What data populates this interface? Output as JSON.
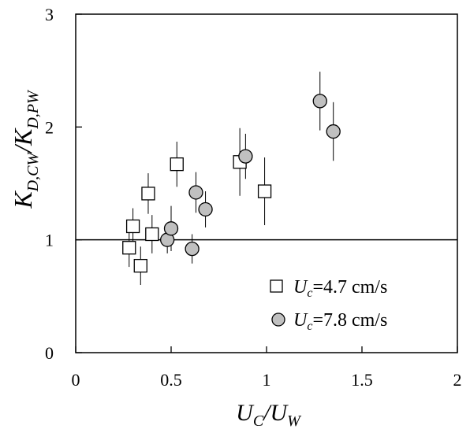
{
  "chart_data": {
    "type": "scatter",
    "xlabel": {
      "main": "U",
      "sub": "C",
      "sep": "/",
      "main2": "U",
      "sub2": "W"
    },
    "ylabel": {
      "main": "K",
      "sub": "D,CW",
      "sep": "/",
      "main2": "K",
      "sub2": "D,PW"
    },
    "xlim": [
      0,
      2
    ],
    "ylim": [
      0,
      3
    ],
    "xticks": [
      "0",
      "0.5",
      "1",
      "1.5",
      "2"
    ],
    "xtick_values": [
      0,
      0.5,
      1,
      1.5,
      2
    ],
    "yticks": [
      "0",
      "1",
      "2",
      "3"
    ],
    "ytick_values": [
      0,
      1,
      2,
      3
    ],
    "reference_line_y": 1,
    "series": [
      {
        "marker": "square",
        "legend": {
          "var": "U",
          "sub": "c",
          "text": "=4.7 cm/s"
        },
        "fill": "#ffffff",
        "points": [
          {
            "x": 0.28,
            "y": 0.93,
            "err": 0.17
          },
          {
            "x": 0.3,
            "y": 1.12,
            "err": 0.16
          },
          {
            "x": 0.34,
            "y": 0.77,
            "err": 0.17
          },
          {
            "x": 0.38,
            "y": 1.41,
            "err": 0.18
          },
          {
            "x": 0.4,
            "y": 1.05,
            "err": 0.17
          },
          {
            "x": 0.53,
            "y": 1.67,
            "err": 0.2
          },
          {
            "x": 0.86,
            "y": 1.69,
            "err": 0.3
          },
          {
            "x": 0.99,
            "y": 1.43,
            "err": 0.3
          }
        ]
      },
      {
        "marker": "circle",
        "legend": {
          "var": "U",
          "sub": "c",
          "text": "=7.8 cm/s"
        },
        "fill": "#c0c0c0",
        "points": [
          {
            "x": 0.48,
            "y": 1.0,
            "err": 0.12
          },
          {
            "x": 0.5,
            "y": 1.1,
            "err": 0.2
          },
          {
            "x": 0.61,
            "y": 0.92,
            "err": 0.13
          },
          {
            "x": 0.63,
            "y": 1.42,
            "err": 0.18
          },
          {
            "x": 0.68,
            "y": 1.27,
            "err": 0.16
          },
          {
            "x": 0.89,
            "y": 1.74,
            "err": 0.2
          },
          {
            "x": 1.28,
            "y": 2.23,
            "err": 0.26
          },
          {
            "x": 1.35,
            "y": 1.96,
            "err": 0.26
          }
        ]
      }
    ]
  }
}
